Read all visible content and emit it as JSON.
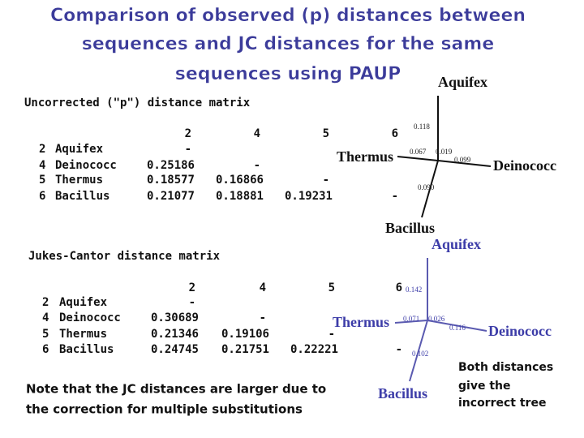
{
  "title_lines": [
    "Comparison of observed (p) distances between",
    "sequences and JC distances for the same",
    "sequences using PAUP"
  ],
  "matrices": [
    {
      "heading": "Uncorrected (\"p\") distance matrix",
      "columns": [
        "2",
        "4",
        "5",
        "6"
      ],
      "rows": [
        {
          "id": "2",
          "name": "Aquifex",
          "cells": [
            "-"
          ]
        },
        {
          "id": "4",
          "name": "Deinococc",
          "cells": [
            "0.25186",
            "-"
          ]
        },
        {
          "id": "5",
          "name": "Thermus",
          "cells": [
            "0.18577",
            "0.16866",
            "-"
          ]
        },
        {
          "id": "6",
          "name": "Bacillus",
          "cells": [
            "0.21077",
            "0.18881",
            "0.19231",
            "-"
          ]
        }
      ]
    },
    {
      "heading": "Jukes-Cantor distance matrix",
      "columns": [
        "2",
        "4",
        "5",
        "6"
      ],
      "rows": [
        {
          "id": "2",
          "name": "Aquifex",
          "cells": [
            "-"
          ]
        },
        {
          "id": "4",
          "name": "Deinococc",
          "cells": [
            "0.30689",
            "-"
          ]
        },
        {
          "id": "5",
          "name": "Thermus",
          "cells": [
            "0.21346",
            "0.19106",
            "-"
          ]
        },
        {
          "id": "6",
          "name": "Bacillus",
          "cells": [
            "0.24745",
            "0.21751",
            "0.22221",
            "-"
          ]
        }
      ]
    }
  ],
  "trees": [
    {
      "taxa": [
        "Aquifex",
        "Thermus",
        "Deinococc",
        "Bacillus"
      ],
      "branches": [
        "0.118",
        "0.067",
        "0.019",
        "0.099",
        "0.090"
      ]
    },
    {
      "taxa": [
        "Aquifex",
        "Thermus",
        "Deinococc",
        "Bacillus"
      ],
      "branches": [
        "0.142",
        "0.071",
        "0.026",
        "0.116",
        "0.102"
      ]
    }
  ],
  "note_lines": [
    "Note that the JC distances are larger due to",
    "the correction for multiple substitutions"
  ],
  "side_note_lines": [
    "Both distances",
    "give the",
    "incorrect tree"
  ]
}
